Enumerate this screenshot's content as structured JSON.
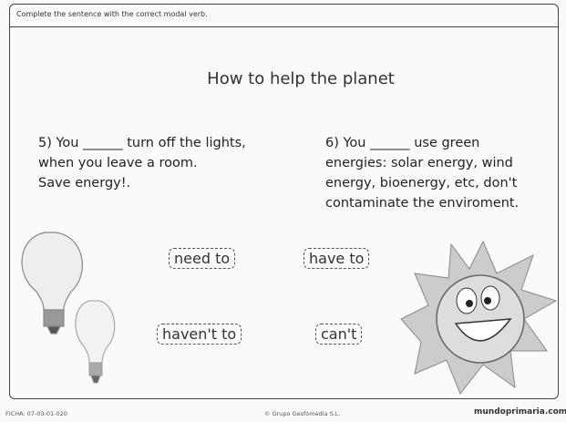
{
  "instruction": "Complete the sentence with the correct modal verb.",
  "title": "How to help the planet",
  "questions": [
    {
      "lines": [
        "5) You ______ turn off the lights,",
        "when you leave a room.",
        "Save energy!."
      ]
    },
    {
      "lines": [
        "6) You ______ use green",
        "energies: solar energy, wind",
        "energy, bioenergy, etc, don't",
        "contaminate the enviroment."
      ]
    }
  ],
  "options": [
    "need to",
    "have to",
    "haven't to",
    "can't"
  ],
  "footer": {
    "code": "FICHA: 07-03-01-020",
    "copyright": "© Grupo Gesfomedia S.L.",
    "brand": "mundoprimaria.com"
  }
}
